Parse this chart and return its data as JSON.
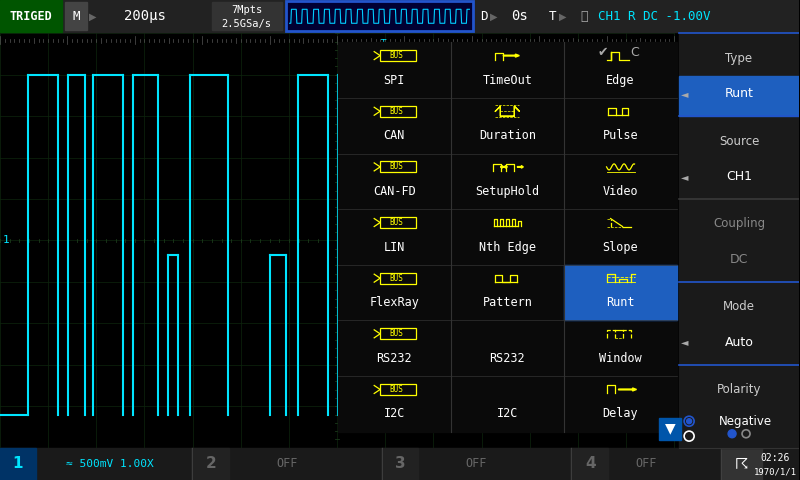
{
  "bg_color": "#000000",
  "header_bg": "#1a1a1a",
  "triged_bg": "#006600",
  "triged_text": "TRIGED",
  "top_bar": {
    "mode": "M",
    "timebase": "200μs",
    "memory": "7Mpts",
    "sample_rate": "2.5GSa/s",
    "delay_label": "D",
    "delay_val": "0s",
    "trig_label": "T",
    "trig_info": "CH1 R DC -1.00V"
  },
  "bottom_bar": {
    "ch1_label": "1",
    "ch1_val": "≈ 500mV 1.00X",
    "ch2_label": "2",
    "ch2_val": "OFF",
    "ch3_label": "3",
    "ch3_val": "OFF",
    "ch4_label": "4",
    "ch4_val": "OFF",
    "time": "02:26",
    "date": "1970/1/1"
  },
  "grid_color": "#0d260d",
  "waveform_color": "#00e5ff",
  "blue_highlight": "#1e5fbf",
  "cyan_color": "#00e5ff",
  "yellow_color": "#ffff00",
  "white_color": "#ffffff",
  "gray_color": "#888888",
  "col1": [
    "SPI",
    "CAN",
    "CAN-FD",
    "LIN",
    "FlexRay",
    "RS232",
    "I2C"
  ],
  "col2": [
    "TimeOut",
    "Duration",
    "SetupHold",
    "Nth Edge",
    "Pattern",
    "RS232",
    "I2C"
  ],
  "col3": [
    "Edge",
    "Pulse",
    "Video",
    "Slope",
    "Runt",
    "Window",
    "Delay"
  ],
  "menu_labels": [
    "Type",
    "Source",
    "Coupling",
    "Mode",
    "Polarity"
  ],
  "menu_values": [
    "Runt",
    "CH1",
    "DC",
    "Auto",
    "Negative"
  ],
  "menu_selected": [
    true,
    false,
    false,
    false,
    false
  ],
  "menu_dimmed": [
    false,
    false,
    true,
    false,
    false
  ],
  "menu_arrows": [
    true,
    true,
    false,
    true,
    false
  ]
}
